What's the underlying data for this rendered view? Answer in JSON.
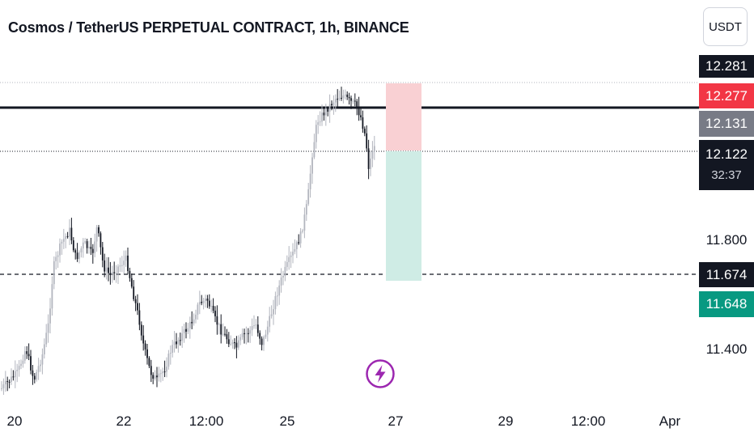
{
  "header": {
    "title": "Cosmos / TetherUS PERPETUAL CONTRACT, 1h, BINANCE",
    "currency_button": "USDT"
  },
  "price_axis": {
    "ticks": [
      "11.800",
      "11.400"
    ],
    "labels": {
      "high": "12.281",
      "stop": "12.277",
      "line": "12.131",
      "last": "12.122",
      "countdown": "32:37",
      "entry": "11.674",
      "target": "11.648"
    }
  },
  "time_axis": {
    "labels": [
      "20",
      "22",
      "12:00",
      "25",
      "27",
      "29",
      "12:00",
      "Apr"
    ]
  },
  "colors": {
    "up_candle": "#b2b5be",
    "down_candle": "#131722",
    "stop_zone": "#f9d0d3",
    "target_zone": "#cfece5",
    "red": "#f23645",
    "green": "#089981",
    "dark": "#131722",
    "gray": "#787b86",
    "lightning": "#9c27b0"
  },
  "icons": {
    "lightning": "lightning-icon"
  }
}
